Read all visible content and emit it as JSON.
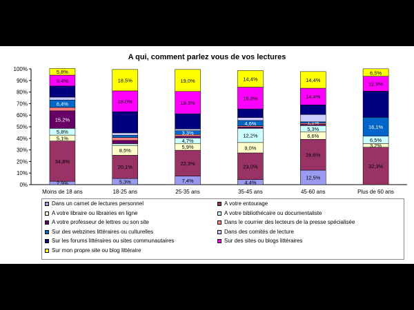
{
  "chart_data": {
    "type": "bar",
    "stacked": true,
    "title": "A qui, comment parlez vous de vos lectures",
    "categories": [
      "Moins de 18 ans",
      "18-25 ans",
      "25-35 ans",
      "35-45 ans",
      "45-60 ans",
      "Plus de 60 ans"
    ],
    "y_ticks": [
      "0%",
      "10%",
      "20%",
      "30%",
      "40%",
      "50%",
      "60%",
      "70%",
      "80%",
      "90%",
      "100%"
    ],
    "ylim": [
      0,
      100
    ],
    "grid": false,
    "legend_position": "bottom",
    "series": [
      {
        "name": "Dans un carnet de lectures personnel",
        "color": "#9a9af0",
        "label_color": "#000000",
        "values": [
          2.9,
          5.3,
          7.4,
          4.4,
          12.5,
          0.0
        ],
        "labels": [
          "2,9%",
          "5,3%",
          "7,4%",
          "4,4%",
          "12,5%",
          "0,0%"
        ]
      },
      {
        "name": "A votre entourage",
        "color": "#993366",
        "label_color": "#000000",
        "values": [
          34.8,
          20.1,
          22.3,
          23.0,
          26.6,
          32.3
        ],
        "labels": [
          "34,8%",
          "20,1%",
          "22,3%",
          "23,0%",
          "26,6%",
          "32,3%"
        ]
      },
      {
        "name": "A votre libraire ou librairies en ligne",
        "color": "#ffffcc",
        "label_color": "#000000",
        "values": [
          5.1,
          8.5,
          5.9,
          9.0,
          6.6,
          3.2
        ],
        "labels": [
          "5,1%",
          "8,5%",
          "5,9%",
          "9,0%",
          "6,6%",
          "3,2%"
        ]
      },
      {
        "name": "A votre bibliothécaire ou documentaliste",
        "color": "#ccffff",
        "label_color": "#000000",
        "values": [
          5.8,
          1.5,
          4.7,
          12.2,
          5.3,
          6.5
        ],
        "labels": [
          "5,8%",
          "",
          "4,7%",
          "12,2%",
          "5,3%",
          "6,5%"
        ]
      },
      {
        "name": "A votre professeur de lettres ou son site",
        "color": "#660066",
        "label_color": "#ffffff",
        "values": [
          15.2,
          2.8,
          1.5,
          1.2,
          1.1,
          0.0
        ],
        "labels": [
          "15,2%",
          "",
          "",
          "",
          "",
          ""
        ]
      },
      {
        "name": "Dans le courrier des lecteurs de la presse spécialisée",
        "color": "#ff8080",
        "label_color": "#000000",
        "values": [
          2.9,
          2.5,
          1.5,
          1.0,
          1.1,
          0.0
        ],
        "labels": [
          "",
          "",
          "",
          "",
          "",
          ""
        ]
      },
      {
        "name": "Sur des webzines littéraires ou culturelles",
        "color": "#0066cc",
        "label_color": "#ffffff",
        "values": [
          6.4,
          2.0,
          3.3,
          4.6,
          1.1,
          16.1
        ],
        "labels": [
          "6,4%",
          "",
          "3,3%",
          "4,6%",
          "1,1%",
          "16,1%"
        ]
      },
      {
        "name": "Dans des comités de lecture",
        "color": "#ccccff",
        "label_color": "#000000",
        "values": [
          2.5,
          2.0,
          1.5,
          2.6,
          6.3,
          0.0
        ],
        "labels": [
          "",
          "",
          "",
          "",
          "",
          ""
        ]
      },
      {
        "name": "Sur les forums littéraires ou sites communautaires",
        "color": "#000080",
        "label_color": "#ffffff",
        "values": [
          9.6,
          18.3,
          13.1,
          7.4,
          8.3,
          22.6
        ],
        "labels": [
          "",
          "",
          "",
          "",
          "",
          ""
        ]
      },
      {
        "name": "Sur des sites ou blogs littéraires",
        "color": "#ff00ff",
        "label_color": "#000000",
        "values": [
          9.4,
          18.0,
          19.3,
          18.8,
          14.4,
          12.9
        ],
        "labels": [
          "9,4%",
          "18,0%",
          "19,3%",
          "18,8%",
          "14,4%",
          "12,9%"
        ]
      },
      {
        "name": "Sur mon propre site ou blog littéraire",
        "color": "#ffff00",
        "label_color": "#000000",
        "values": [
          5.8,
          18.5,
          19.0,
          14.4,
          14.4,
          6.5
        ],
        "labels": [
          "5,8%",
          "18,5%",
          "19,0%",
          "14,4%",
          "14,4%",
          "6,5%"
        ]
      }
    ]
  }
}
